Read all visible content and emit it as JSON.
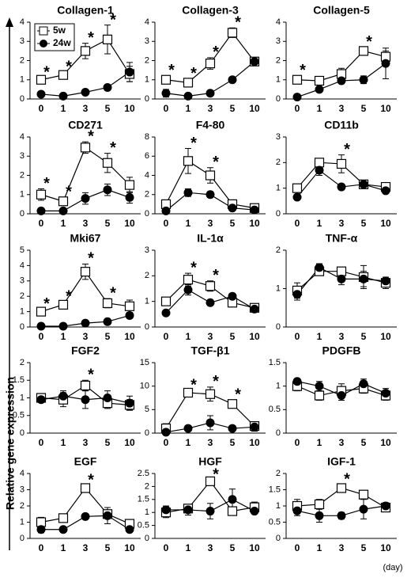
{
  "ylabel": "Relative gene expression",
  "xlabel": "(day)",
  "chart_data": [
    {
      "type": "line",
      "title": "Collagen-1",
      "categories": [
        "0",
        "1",
        "3",
        "5",
        "10"
      ],
      "ylim": [
        0,
        4
      ],
      "yticks": [
        0,
        1,
        2,
        3,
        4
      ],
      "legend": "upper left",
      "series": [
        {
          "name": "5w",
          "color": "#000000",
          "marker": "square-open",
          "values": [
            1.0,
            1.25,
            2.5,
            3.1,
            1.3
          ],
          "errors": [
            0.1,
            0.15,
            0.4,
            0.75,
            0.4
          ]
        },
        {
          "name": "24w",
          "color": "#000000",
          "marker": "circle",
          "values": [
            0.25,
            0.15,
            0.35,
            0.6,
            1.4
          ],
          "errors": [
            0.05,
            0.05,
            0.05,
            0.1,
            0.5
          ]
        }
      ],
      "annotations": [
        {
          "text": "*",
          "category": "0"
        },
        {
          "text": "*",
          "category": "1"
        },
        {
          "text": "*",
          "category": "3"
        },
        {
          "text": "*",
          "category": "5"
        }
      ]
    },
    {
      "type": "line",
      "title": "Collagen-3",
      "categories": [
        "0",
        "1",
        "3",
        "5",
        "10"
      ],
      "ylim": [
        0,
        4
      ],
      "yticks": [
        0,
        1,
        2,
        3,
        4
      ],
      "series": [
        {
          "color": "#000000",
          "marker": "square-open",
          "values": [
            1.0,
            0.85,
            1.85,
            3.45,
            1.95
          ],
          "errors": [
            0.2,
            0.2,
            0.3,
            0.25,
            0.1
          ]
        },
        {
          "color": "#000000",
          "marker": "circle",
          "values": [
            0.3,
            0.15,
            0.3,
            1.0,
            1.95
          ],
          "errors": [
            0.2,
            0.05,
            0.05,
            0.1,
            0.1
          ]
        }
      ],
      "annotations": [
        {
          "text": "*",
          "category": "0"
        },
        {
          "text": "*",
          "category": "1"
        },
        {
          "text": "*",
          "category": "3"
        },
        {
          "text": "*",
          "category": "5"
        }
      ]
    },
    {
      "type": "line",
      "title": "Collagen-5",
      "categories": [
        "0",
        "1",
        "3",
        "5",
        "10"
      ],
      "ylim": [
        0,
        4
      ],
      "yticks": [
        0,
        1,
        2,
        3,
        4
      ],
      "series": [
        {
          "color": "#000000",
          "marker": "square-open",
          "values": [
            1.0,
            0.95,
            1.3,
            2.5,
            2.2
          ],
          "errors": [
            0.2,
            0.1,
            0.3,
            0.2,
            0.3
          ]
        },
        {
          "color": "#000000",
          "marker": "circle",
          "values": [
            0.1,
            0.5,
            0.95,
            1.0,
            1.85
          ],
          "errors": [
            0.05,
            0.1,
            0.15,
            0.2,
            0.8
          ]
        }
      ],
      "annotations": [
        {
          "text": "*",
          "category": "0"
        },
        {
          "text": "*",
          "category": "5"
        }
      ]
    },
    {
      "type": "line",
      "title": "CD271",
      "categories": [
        "0",
        "1",
        "3",
        "5",
        "10"
      ],
      "ylim": [
        0,
        4
      ],
      "yticks": [
        0,
        1,
        2,
        3,
        4
      ],
      "series": [
        {
          "color": "#000000",
          "marker": "square-open",
          "values": [
            1.0,
            0.65,
            3.45,
            2.65,
            1.5
          ],
          "errors": [
            0.3,
            0.2,
            0.3,
            0.5,
            0.4
          ]
        },
        {
          "color": "#000000",
          "marker": "circle",
          "values": [
            0.15,
            0.15,
            0.8,
            1.25,
            0.85
          ],
          "errors": [
            0.05,
            0.05,
            0.3,
            0.3,
            0.3
          ]
        }
      ],
      "annotations": [
        {
          "text": "*",
          "category": "0"
        },
        {
          "text": "*",
          "category": "1"
        },
        {
          "text": "*",
          "category": "3"
        },
        {
          "text": "*",
          "category": "5"
        }
      ]
    },
    {
      "type": "line",
      "title": "F4-80",
      "categories": [
        "0",
        "1",
        "3",
        "5",
        "10"
      ],
      "ylim": [
        0,
        8
      ],
      "yticks": [
        0,
        2,
        4,
        6,
        8
      ],
      "series": [
        {
          "color": "#000000",
          "marker": "square-open",
          "values": [
            1.0,
            5.5,
            4.0,
            1.0,
            0.6
          ],
          "errors": [
            0.3,
            1.3,
            0.8,
            0.2,
            0.2
          ]
        },
        {
          "color": "#000000",
          "marker": "circle",
          "values": [
            0.3,
            2.2,
            2.0,
            0.6,
            0.4
          ],
          "errors": [
            0.1,
            0.4,
            0.3,
            0.1,
            0.1
          ]
        }
      ],
      "annotations": [
        {
          "text": "*",
          "category": "1"
        },
        {
          "text": "*",
          "category": "3"
        }
      ]
    },
    {
      "type": "line",
      "title": "CD11b",
      "categories": [
        "0",
        "1",
        "3",
        "5",
        "10"
      ],
      "ylim": [
        0,
        3
      ],
      "yticks": [
        0,
        1,
        2,
        3
      ],
      "series": [
        {
          "color": "#000000",
          "marker": "square-open",
          "values": [
            1.0,
            2.0,
            1.95,
            1.15,
            1.05
          ],
          "errors": [
            0.1,
            0.1,
            0.35,
            0.15,
            0.1
          ]
        },
        {
          "color": "#000000",
          "marker": "circle",
          "values": [
            0.65,
            1.7,
            1.05,
            1.15,
            0.9
          ],
          "errors": [
            0.1,
            0.2,
            0.1,
            0.1,
            0.1
          ]
        }
      ],
      "annotations": [
        {
          "text": "*",
          "category": "3"
        }
      ]
    },
    {
      "type": "line",
      "title": "Mki67",
      "categories": [
        "0",
        "1",
        "3",
        "5",
        "10"
      ],
      "ylim": [
        0,
        5
      ],
      "yticks": [
        0,
        1,
        2,
        3,
        4,
        5
      ],
      "series": [
        {
          "color": "#000000",
          "marker": "square-open",
          "values": [
            1.0,
            1.45,
            3.6,
            1.55,
            1.35
          ],
          "errors": [
            0.15,
            0.2,
            0.5,
            0.3,
            0.4
          ]
        },
        {
          "color": "#000000",
          "marker": "circle",
          "values": [
            0.05,
            0.05,
            0.25,
            0.35,
            0.75
          ],
          "errors": [
            0.02,
            0.02,
            0.05,
            0.05,
            0.1
          ]
        }
      ],
      "annotations": [
        {
          "text": "*",
          "category": "0"
        },
        {
          "text": "*",
          "category": "1"
        },
        {
          "text": "*",
          "category": "3"
        },
        {
          "text": "*",
          "category": "5"
        }
      ]
    },
    {
      "type": "line",
      "title": "IL-1α",
      "categories": [
        "0",
        "1",
        "3",
        "5",
        "10"
      ],
      "ylim": [
        0,
        3
      ],
      "yticks": [
        0,
        1,
        2,
        3
      ],
      "series": [
        {
          "color": "#000000",
          "marker": "square-open",
          "values": [
            1.0,
            1.85,
            1.6,
            0.95,
            0.75
          ],
          "errors": [
            0.1,
            0.25,
            0.2,
            0.1,
            0.1
          ]
        },
        {
          "color": "#000000",
          "marker": "circle",
          "values": [
            0.55,
            1.45,
            0.95,
            1.2,
            0.7
          ],
          "errors": [
            0.05,
            0.2,
            0.1,
            0.1,
            0.1
          ]
        }
      ],
      "annotations": [
        {
          "text": "*",
          "category": "1"
        },
        {
          "text": "*",
          "category": "3"
        }
      ]
    },
    {
      "type": "line",
      "title": "TNF-α",
      "categories": [
        "0",
        "1",
        "3",
        "5",
        "10"
      ],
      "ylim": [
        0,
        2
      ],
      "yticks": [
        0,
        1,
        2
      ],
      "series": [
        {
          "color": "#000000",
          "marker": "square-open",
          "values": [
            0.95,
            1.45,
            1.45,
            1.3,
            1.15
          ],
          "errors": [
            0.2,
            0.1,
            0.1,
            0.3,
            0.15
          ]
        },
        {
          "color": "#000000",
          "marker": "circle",
          "values": [
            0.85,
            1.55,
            1.25,
            1.25,
            1.2
          ],
          "errors": [
            0.15,
            0.1,
            0.15,
            0.2,
            0.1
          ]
        }
      ],
      "annotations": []
    },
    {
      "type": "line",
      "title": "FGF2",
      "categories": [
        "0",
        "1",
        "3",
        "5",
        "10"
      ],
      "ylim": [
        0,
        2
      ],
      "yticks": [
        0,
        0.5,
        1,
        1.5,
        2
      ],
      "series": [
        {
          "color": "#000000",
          "marker": "square-open",
          "values": [
            1.0,
            0.95,
            1.35,
            0.85,
            0.8
          ],
          "errors": [
            0.1,
            0.2,
            0.15,
            0.15,
            0.15
          ]
        },
        {
          "color": "#000000",
          "marker": "circle",
          "values": [
            0.95,
            1.05,
            0.95,
            1.0,
            0.85
          ],
          "errors": [
            0.05,
            0.15,
            0.25,
            0.2,
            0.2
          ]
        }
      ],
      "annotations": [
        {
          "text": "*",
          "category": "3"
        }
      ]
    },
    {
      "type": "line",
      "title": "TGF-β1",
      "categories": [
        "0",
        "1",
        "3",
        "5",
        "10"
      ],
      "ylim": [
        0,
        15
      ],
      "yticks": [
        0,
        5,
        10,
        15
      ],
      "series": [
        {
          "color": "#000000",
          "marker": "square-open",
          "values": [
            1.0,
            8.6,
            8.3,
            6.2,
            1.5
          ],
          "errors": [
            1.0,
            0.5,
            1.5,
            0.8,
            0.6
          ]
        },
        {
          "color": "#000000",
          "marker": "circle",
          "values": [
            0.2,
            1.0,
            2.2,
            1.0,
            1.3
          ],
          "errors": [
            0.2,
            0.2,
            1.5,
            0.2,
            0.9
          ]
        }
      ],
      "annotations": [
        {
          "text": "*",
          "category": "1"
        },
        {
          "text": "*",
          "category": "3"
        },
        {
          "text": "*",
          "category": "5"
        }
      ]
    },
    {
      "type": "line",
      "title": "PDGFB",
      "categories": [
        "0",
        "1",
        "3",
        "5",
        "10"
      ],
      "ylim": [
        0,
        1.5
      ],
      "yticks": [
        0,
        0.5,
        1,
        1.5
      ],
      "series": [
        {
          "color": "#000000",
          "marker": "square-open",
          "values": [
            1.0,
            0.8,
            0.9,
            0.95,
            0.8
          ],
          "errors": [
            0.1,
            0.1,
            0.15,
            0.1,
            0.1
          ]
        },
        {
          "color": "#000000",
          "marker": "circle",
          "values": [
            1.1,
            1.0,
            0.8,
            1.05,
            0.85
          ],
          "errors": [
            0.05,
            0.1,
            0.1,
            0.1,
            0.1
          ]
        }
      ],
      "annotations": []
    },
    {
      "type": "line",
      "title": "EGF",
      "categories": [
        "0",
        "1",
        "3",
        "5",
        "10"
      ],
      "ylim": [
        0,
        4
      ],
      "yticks": [
        0,
        1,
        2,
        3,
        4
      ],
      "series": [
        {
          "color": "#000000",
          "marker": "square-open",
          "values": [
            1.0,
            1.25,
            3.1,
            1.5,
            0.9
          ],
          "errors": [
            0.3,
            0.2,
            0.15,
            0.2,
            0.1
          ]
        },
        {
          "color": "#000000",
          "marker": "circle",
          "values": [
            0.55,
            0.55,
            1.35,
            1.4,
            0.55
          ],
          "errors": [
            0.2,
            0.1,
            0.1,
            0.5,
            0.15
          ]
        }
      ],
      "annotations": [
        {
          "text": "*",
          "category": "3"
        }
      ]
    },
    {
      "type": "line",
      "title": "HGF",
      "categories": [
        "0",
        "1",
        "3",
        "5",
        "10"
      ],
      "ylim": [
        0,
        2.5
      ],
      "yticks": [
        0,
        0.5,
        1,
        1.5,
        2,
        2.5
      ],
      "series": [
        {
          "color": "#000000",
          "marker": "square-open",
          "values": [
            1.0,
            1.15,
            2.2,
            1.05,
            1.2
          ],
          "errors": [
            0.2,
            0.15,
            0.05,
            0.1,
            0.2
          ]
        },
        {
          "color": "#000000",
          "marker": "circle",
          "values": [
            1.1,
            1.1,
            1.05,
            1.5,
            1.05
          ],
          "errors": [
            0.15,
            0.2,
            0.3,
            0.4,
            0.1
          ]
        }
      ],
      "annotations": [
        {
          "text": "*",
          "category": "3"
        }
      ]
    },
    {
      "type": "line",
      "title": "IGF-1",
      "categories": [
        "0",
        "1",
        "3",
        "5",
        "10"
      ],
      "ylim": [
        0,
        2
      ],
      "yticks": [
        0,
        0.5,
        1,
        1.5,
        2
      ],
      "series": [
        {
          "color": "#000000",
          "marker": "square-open",
          "values": [
            1.0,
            1.05,
            1.55,
            1.35,
            0.95
          ],
          "errors": [
            0.2,
            0.15,
            0.1,
            0.05,
            0.1
          ]
        },
        {
          "color": "#000000",
          "marker": "circle",
          "values": [
            0.85,
            0.7,
            0.7,
            0.9,
            1.0
          ],
          "errors": [
            0.15,
            0.2,
            0.1,
            0.3,
            0.1
          ]
        }
      ],
      "annotations": [
        {
          "text": "*",
          "category": "3"
        }
      ]
    }
  ]
}
